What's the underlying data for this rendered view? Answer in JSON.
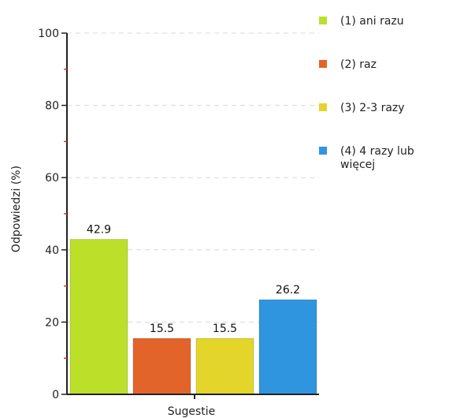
{
  "chart_data": {
    "type": "bar",
    "xlabel": "Sugestie",
    "ylabel": "Odpowiedzi (%)",
    "ylim": [
      0,
      100
    ],
    "yticks": [
      0,
      20,
      40,
      60,
      80,
      100
    ],
    "grid": true,
    "legend_position": "right",
    "series": [
      {
        "name": "(1) ani razu",
        "value": 42.9,
        "label": "42.9",
        "color": "#bcdf2a"
      },
      {
        "name": "(2) raz",
        "value": 15.5,
        "label": "15.5",
        "color": "#e2642b"
      },
      {
        "name": "(3) 2-3 razy",
        "value": 15.5,
        "label": "15.5",
        "color": "#e3d52a"
      },
      {
        "name": "(4) 4 razy lub więcej",
        "value": 26.2,
        "label": "26.2",
        "color": "#2f95de"
      }
    ]
  }
}
